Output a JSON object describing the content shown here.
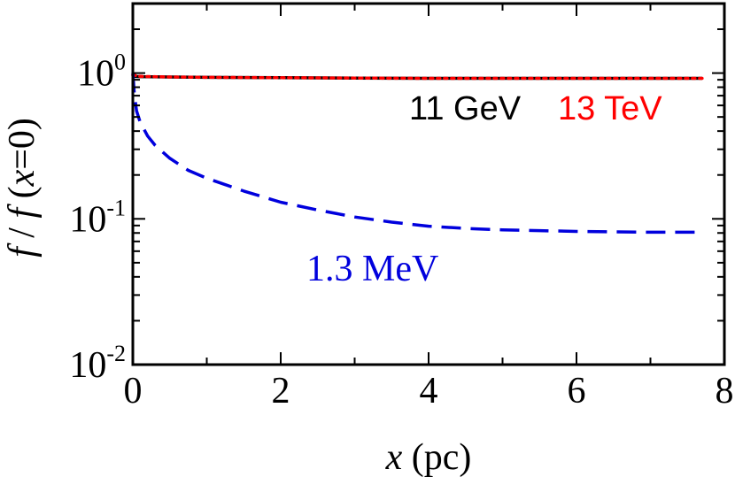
{
  "chart_data": {
    "type": "line",
    "xlabel_var": "x",
    "xlabel_unit": " (pc)",
    "ylabel_parts": [
      "f",
      " / ",
      "f",
      " (",
      "x",
      "=0)"
    ],
    "xlim": [
      0,
      8
    ],
    "ylim": [
      0.01,
      3
    ],
    "yscale": "log",
    "x_ticks": [
      "0",
      "2",
      "4",
      "6",
      "8"
    ],
    "y_ticks": [
      {
        "value": 1,
        "base": "10",
        "exp": "0"
      },
      {
        "value": 0.1,
        "base": "10",
        "exp": "-1"
      },
      {
        "value": 0.01,
        "base": "10",
        "exp": "-2"
      }
    ],
    "series": [
      {
        "label": "11 GeV",
        "color": "#000000",
        "style": "solid",
        "x": [
          0,
          0.1,
          0.5,
          1,
          2,
          3,
          4,
          5,
          6,
          7,
          7.7
        ],
        "y": [
          0.95,
          0.945,
          0.94,
          0.935,
          0.93,
          0.925,
          0.92,
          0.92,
          0.92,
          0.92,
          0.92
        ]
      },
      {
        "label": "13 TeV",
        "color": "#ff0000",
        "style": "dotted",
        "x": [
          0,
          0.1,
          0.5,
          1,
          2,
          3,
          4,
          5,
          6,
          7,
          7.7
        ],
        "y": [
          0.97,
          0.95,
          0.94,
          0.935,
          0.93,
          0.925,
          0.92,
          0.92,
          0.92,
          0.92,
          0.92
        ]
      },
      {
        "label": "1.3 MeV",
        "color": "#0000dd",
        "style": "dashed",
        "x": [
          0,
          0.02,
          0.05,
          0.1,
          0.2,
          0.3,
          0.5,
          0.75,
          1,
          1.5,
          2,
          2.5,
          3,
          3.5,
          4,
          4.5,
          5,
          5.5,
          6,
          6.5,
          7,
          7.7
        ],
        "y": [
          1.0,
          0.72,
          0.55,
          0.46,
          0.37,
          0.32,
          0.26,
          0.215,
          0.19,
          0.155,
          0.13,
          0.115,
          0.103,
          0.095,
          0.089,
          0.086,
          0.084,
          0.083,
          0.082,
          0.0815,
          0.081,
          0.081
        ]
      }
    ]
  }
}
